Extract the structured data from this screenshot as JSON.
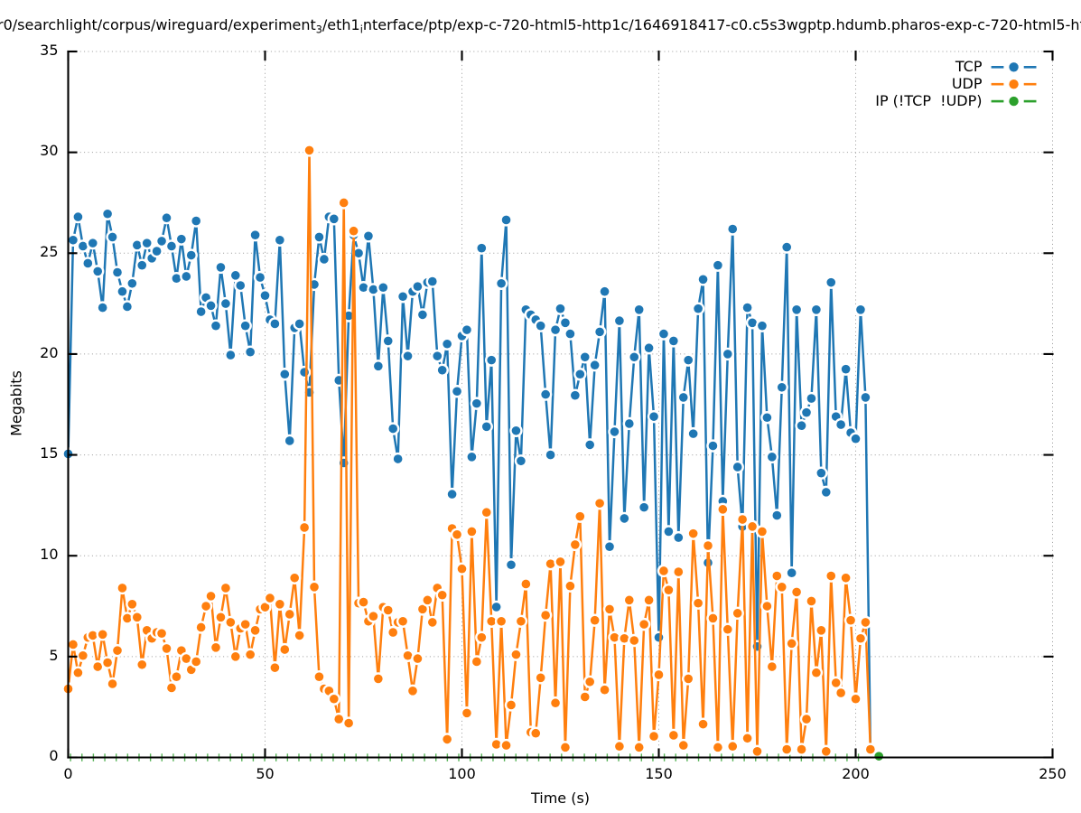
{
  "title": {
    "segments": [
      {
        "text": "r0/searchlight/corpus/wireguard/experiment"
      },
      {
        "sub": "3"
      },
      {
        "text": "/eth1"
      },
      {
        "sub": "i"
      },
      {
        "text": "nterface/ptp/exp-c-720-html5-http1c/1646918417-c0.c5s3wgptp.hdumb.pharos-exp-c-720-html5-ht"
      }
    ],
    "plain": "r0/searchlight/corpus/wireguard/experiment_3/eth1_interface/ptp/exp-c-720-html5-http1c/1646918417-c0.c5s3wgptp.hdumb.pharos-exp-c-720-html5-ht"
  },
  "axes": {
    "x": {
      "label": "Time (s)",
      "min": 0,
      "max": 250,
      "ticks": [
        0,
        50,
        100,
        150,
        200,
        250
      ]
    },
    "y": {
      "label": "Megabits",
      "min": 0,
      "max": 35,
      "ticks": [
        0,
        5,
        10,
        15,
        20,
        25,
        30,
        35
      ]
    }
  },
  "legend": {
    "items": [
      {
        "label": "TCP",
        "color": "#1f77b4"
      },
      {
        "label": "UDP",
        "color": "#ff7f0e"
      },
      {
        "label": "IP (!TCP  !UDP)",
        "color": "#2ca02c"
      }
    ]
  },
  "colors": {
    "tcp": "#1f77b4",
    "udp": "#ff7f0e",
    "ip": "#2ca02c",
    "grid": "#9a9a9a",
    "axis": "#000000"
  },
  "chart_data": {
    "type": "line",
    "title": "r0/searchlight/corpus/wireguard/experiment_3/eth1_interface/ptp/exp-c-720-html5-http1c/1646918417-c0.c5s3wgptp.hdumb.pharos-exp-c-720-html5-ht",
    "xlabel": "Time (s)",
    "ylabel": "Megabits",
    "xlim": [
      0,
      250
    ],
    "ylim": [
      0,
      35
    ],
    "grid": "dotted",
    "legend_position": "top right",
    "series": [
      {
        "name": "TCP",
        "color": "#1f77b4",
        "marker": "filled-circle",
        "t0": 0,
        "dt": 1.25,
        "values": [
          15.05,
          25.65,
          26.8,
          25.35,
          24.5,
          25.5,
          24.1,
          22.3,
          26.95,
          25.8,
          24.05,
          23.1,
          22.35,
          23.5,
          25.4,
          24.4,
          25.5,
          24.75,
          25.1,
          25.6,
          26.75,
          25.35,
          23.75,
          25.7,
          23.85,
          24.9,
          26.6,
          22.1,
          22.8,
          22.4,
          21.4,
          24.3,
          22.5,
          19.95,
          23.9,
          23.4,
          21.4,
          20.1,
          25.9,
          23.8,
          22.9,
          21.7,
          21.5,
          25.65,
          19.0,
          15.7,
          21.3,
          21.5,
          19.1,
          18.1,
          23.45,
          25.8,
          24.7,
          26.8,
          26.7,
          18.7,
          14.6,
          21.9,
          25.9,
          25.0,
          23.3,
          25.85,
          23.2,
          19.4,
          23.3,
          20.65,
          16.3,
          14.8,
          22.85,
          19.9,
          23.1,
          23.35,
          21.95,
          23.55,
          23.6,
          19.9,
          19.2,
          20.5,
          13.05,
          18.15,
          20.9,
          21.2,
          14.9,
          17.55,
          25.25,
          16.4,
          19.7,
          7.46,
          23.5,
          26.65,
          9.55,
          16.2,
          14.7,
          22.2,
          21.95,
          21.7,
          21.4,
          18.0,
          15.0,
          21.2,
          22.25,
          21.55,
          21.0,
          17.95,
          19.0,
          19.85,
          15.5,
          19.45,
          21.1,
          23.1,
          10.45,
          16.15,
          21.65,
          11.85,
          16.55,
          19.85,
          22.2,
          12.4,
          20.3,
          16.9,
          5.95,
          21.0,
          11.2,
          20.65,
          10.9,
          17.85,
          19.7,
          16.05,
          22.25,
          23.7,
          9.65,
          15.45,
          24.4,
          12.7,
          20.0,
          26.2,
          14.4,
          11.45,
          22.3,
          21.55,
          5.5,
          21.4,
          16.85,
          14.9,
          12.0,
          18.35,
          25.3,
          9.15,
          22.2,
          16.45,
          17.1,
          17.8,
          22.2,
          14.1,
          13.15,
          23.55,
          16.9,
          16.5,
          19.25,
          16.1,
          15.8,
          22.2,
          17.85,
          0.35
        ]
      },
      {
        "name": "UDP",
        "color": "#ff7f0e",
        "marker": "filled-circle",
        "t0": 0,
        "dt": 1.25,
        "values": [
          3.4,
          5.6,
          4.2,
          5.05,
          5.95,
          6.05,
          4.5,
          6.1,
          4.7,
          3.65,
          5.3,
          8.4,
          6.9,
          7.6,
          6.95,
          4.6,
          6.3,
          5.9,
          6.2,
          6.15,
          5.4,
          3.45,
          4.0,
          5.3,
          4.9,
          4.35,
          4.75,
          6.45,
          7.5,
          8.0,
          5.45,
          6.95,
          8.4,
          6.7,
          5.0,
          6.4,
          6.6,
          5.1,
          6.3,
          7.35,
          7.45,
          7.9,
          4.45,
          7.6,
          5.35,
          7.1,
          8.9,
          6.05,
          11.4,
          30.1,
          8.45,
          4.0,
          3.4,
          3.3,
          2.9,
          1.9,
          27.5,
          1.7,
          26.1,
          7.65,
          7.7,
          6.75,
          7.0,
          3.9,
          7.45,
          7.3,
          6.2,
          6.7,
          6.75,
          5.05,
          3.3,
          4.9,
          7.35,
          7.8,
          6.7,
          8.4,
          8.05,
          0.9,
          11.35,
          11.05,
          9.35,
          2.2,
          11.2,
          4.75,
          5.95,
          12.15,
          6.75,
          0.65,
          6.75,
          0.6,
          2.6,
          5.1,
          6.75,
          8.6,
          1.25,
          1.2,
          3.95,
          7.05,
          9.6,
          2.7,
          9.7,
          0.5,
          8.5,
          10.55,
          11.95,
          3.0,
          3.75,
          6.8,
          12.6,
          3.35,
          7.35,
          5.95,
          0.55,
          5.9,
          7.8,
          5.8,
          0.5,
          6.6,
          7.8,
          1.05,
          4.1,
          9.25,
          8.3,
          1.1,
          9.2,
          0.6,
          3.9,
          11.1,
          7.65,
          1.65,
          10.5,
          6.9,
          0.5,
          12.3,
          6.35,
          0.55,
          7.15,
          11.8,
          0.95,
          11.45,
          0.3,
          11.2,
          7.5,
          4.5,
          9.0,
          8.45,
          0.4,
          5.65,
          8.2,
          0.4,
          1.9,
          7.75,
          4.2,
          6.3,
          0.3,
          9.0,
          3.7,
          3.2,
          8.9,
          6.8,
          2.9,
          5.9,
          6.7,
          0.4
        ]
      },
      {
        "name": "IP (!TCP  !UDP)",
        "color": "#2ca02c",
        "marker": "filled-circle",
        "near_zero_marks": {
          "t_start": 0.6,
          "t_end": 202.3,
          "step": 2.9,
          "value": 0.0
        },
        "points": [
          [
            205.9,
            0.06
          ]
        ]
      }
    ]
  },
  "layout_note": "gnuplot-style linespoints chart, left/bottom border, inward mirrored ticks, dotted grid"
}
